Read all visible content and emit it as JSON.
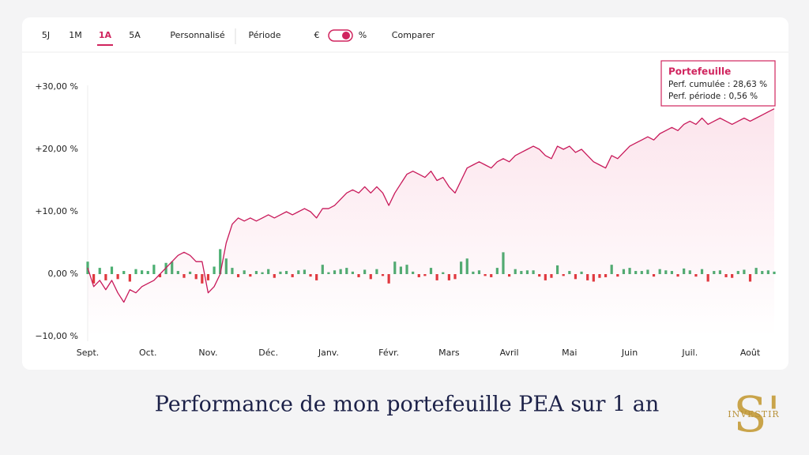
{
  "ui": {
    "tabs": [
      "5J",
      "1M",
      "1A",
      "5A"
    ],
    "active_tab_index": 2,
    "custom": "Personnalisé",
    "period": "Période",
    "toggle_left": "€",
    "toggle_right": "%",
    "compare": "Comparer"
  },
  "tooltip": {
    "title": "Portefeuille",
    "lines": [
      "Perf. cumulée : 28,63 %",
      "Perf. période : 0,56 %"
    ]
  },
  "caption": "Performance de mon portefeuille PEA sur 1 an",
  "logo": {
    "mark": "S'",
    "text": "INVESTIR"
  },
  "chart_data": {
    "type": "line",
    "categories": [
      "Sept.",
      null,
      null,
      null,
      null,
      null,
      null,
      null,
      null,
      null,
      "Oct.",
      null,
      null,
      null,
      null,
      null,
      null,
      null,
      null,
      null,
      "Nov.",
      null,
      null,
      null,
      null,
      null,
      null,
      null,
      null,
      null,
      "Déc.",
      null,
      null,
      null,
      null,
      null,
      null,
      null,
      null,
      null,
      "Janv.",
      null,
      null,
      null,
      null,
      null,
      null,
      null,
      null,
      null,
      "Févr.",
      null,
      null,
      null,
      null,
      null,
      null,
      null,
      null,
      null,
      "Mars",
      null,
      null,
      null,
      null,
      null,
      null,
      null,
      null,
      null,
      "Avril",
      null,
      null,
      null,
      null,
      null,
      null,
      null,
      null,
      null,
      "Mai",
      null,
      null,
      null,
      null,
      null,
      null,
      null,
      null,
      null,
      "Juin",
      null,
      null,
      null,
      null,
      null,
      null,
      null,
      null,
      null,
      "Juil.",
      null,
      null,
      null,
      null,
      null,
      null,
      null,
      null,
      null,
      "Août",
      null,
      null,
      null,
      null
    ],
    "series": [
      {
        "color": "#c8195a",
        "values": [
          1,
          -2,
          -1,
          -2.5,
          -1,
          -3,
          -4.5,
          -2.5,
          -3,
          -2,
          -1.5,
          -1,
          0,
          1,
          2,
          3,
          3.5,
          3,
          2,
          2,
          -3,
          -2,
          0,
          5,
          8,
          9,
          8.5,
          9,
          8.5,
          9,
          9.5,
          9,
          9.5,
          10,
          9.5,
          10,
          10.5,
          10,
          9,
          10.5,
          10.5,
          11,
          12,
          13,
          13.5,
          13,
          14,
          13,
          14,
          13,
          11,
          13,
          14.5,
          16,
          16.5,
          16,
          15.5,
          16.5,
          15,
          15.5,
          14,
          13,
          15,
          17,
          17.5,
          18,
          17.5,
          17,
          18,
          18.5,
          18,
          19,
          19.5,
          20,
          20.5,
          20,
          19,
          18.5,
          20.5,
          20,
          20.5,
          19.5,
          20,
          19,
          18,
          17.5,
          17,
          19,
          18.5,
          19.5,
          20.5,
          21,
          21.5,
          22,
          21.5,
          22.5,
          23,
          23.5,
          23,
          24,
          24.5,
          24,
          25,
          24,
          24.5,
          25,
          24.5,
          24,
          24.5,
          25,
          24.5,
          25,
          25.5,
          26,
          26.5
        ]
      },
      {
        "type": "bar",
        "positive_color": "#4caf72",
        "negative_color": "#e0393e",
        "values": [
          2,
          -1.5,
          1,
          -1,
          1.2,
          -0.8,
          0.5,
          -1.2,
          0.8,
          0.6,
          0.5,
          1.5,
          -0.5,
          1.8,
          2,
          0.5,
          -0.6,
          0.4,
          -0.8,
          -1.5,
          -1,
          1.2,
          4,
          2.5,
          1,
          -0.5,
          0.6,
          -0.4,
          0.5,
          0.3,
          0.8,
          -0.6,
          0.4,
          0.5,
          -0.5,
          0.6,
          0.7,
          -0.4,
          -1,
          1.5,
          0.3,
          0.6,
          0.8,
          1,
          0.4,
          -0.5,
          0.7,
          -0.8,
          0.8,
          -0.3,
          -1.5,
          2,
          1.2,
          1.5,
          0.4,
          -0.5,
          -0.3,
          1,
          -1,
          0.3,
          -1,
          -0.8,
          2,
          2.5,
          0.4,
          0.6,
          -0.3,
          -0.5,
          1,
          3.5,
          -0.4,
          0.8,
          0.5,
          0.6,
          0.6,
          -0.4,
          -1,
          -0.6,
          1.4,
          -0.3,
          0.5,
          -0.8,
          0.4,
          -1,
          -1.2,
          -0.6,
          -0.5,
          1.5,
          -0.4,
          0.8,
          1,
          0.5,
          0.5,
          0.7,
          -0.4,
          0.8,
          0.6,
          0.5,
          -0.4,
          0.9,
          0.6,
          -0.4,
          0.8,
          -1.2,
          0.5,
          0.6,
          -0.5,
          -0.6,
          0.5,
          0.7,
          -1.2,
          1,
          0.5,
          0.6,
          0.4
        ]
      }
    ],
    "ylim": [
      -10,
      30
    ],
    "yticks": [
      {
        "value": 30,
        "label": "+30,00 %"
      },
      {
        "value": 20,
        "label": "+20,00 %"
      },
      {
        "value": 10,
        "label": "+10,00 %"
      },
      {
        "value": 0,
        "label": "0,00 %"
      },
      {
        "value": -10,
        "label": "−10,00 %"
      }
    ],
    "grid": false
  }
}
